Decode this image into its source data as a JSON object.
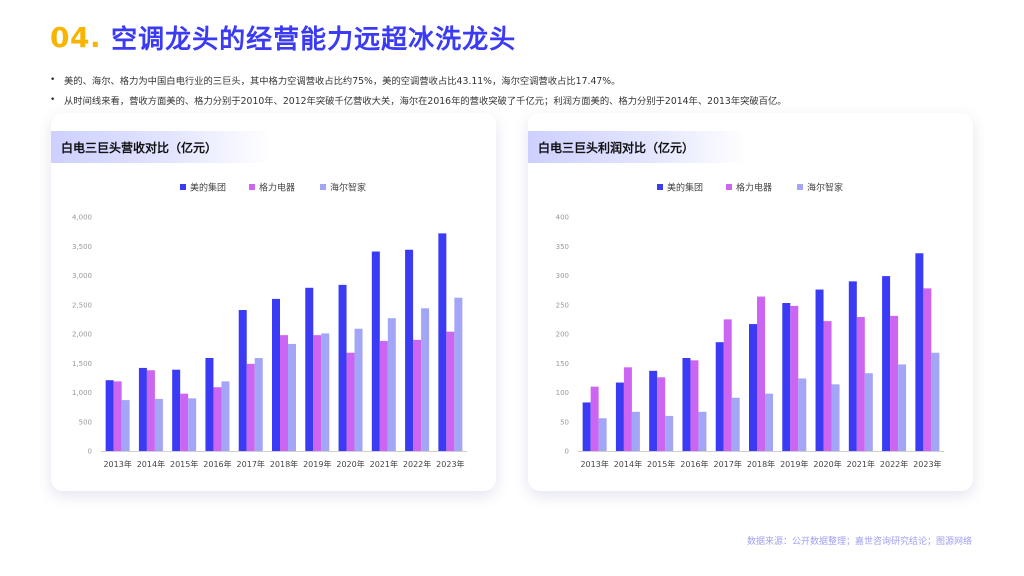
{
  "header": {
    "number": "04.",
    "title": "空调龙头的经营能力远超冰洗龙头"
  },
  "bullets": [
    "美的、海尔、格力为中国白电行业的三巨头，其中格力空调营收占比约75%，美的空调营收占比43.11%，海尔空调营收占比17.47%。",
    "从时间线来看，营收方面美的、格力分别于2010年、2012年突破千亿营收大关，海尔在2016年的营收突破了千亿元；利润方面美的、格力分别于2014年、2013年突破百亿。"
  ],
  "bullet_marker": "•",
  "cards": {
    "left_title": "白电三巨头营收对比（亿元）",
    "right_title": "白电三巨头利润对比（亿元）"
  },
  "source": "数据来源：公开数据整理；嘉世咨询研究结论；图源网络",
  "colors": {
    "midea": "#3B3BF5",
    "gree": "#CC66F2",
    "haier": "#A3A6F7",
    "title_number": "#F7B500",
    "title_text": "#3B3BF5"
  },
  "chart_data": [
    {
      "type": "bar",
      "title": "白电三巨头营收对比（亿元）",
      "categories": [
        "2013年",
        "2014年",
        "2015年",
        "2016年",
        "2017年",
        "2018年",
        "2019年",
        "2020年",
        "2021年",
        "2022年",
        "2023年"
      ],
      "series": [
        {
          "name": "美的集团",
          "values": [
            1210,
            1420,
            1390,
            1590,
            2410,
            2600,
            2790,
            2840,
            3410,
            3440,
            3720
          ]
        },
        {
          "name": "格力电器",
          "values": [
            1190,
            1380,
            980,
            1090,
            1490,
            1980,
            1980,
            1680,
            1880,
            1900,
            2040
          ]
        },
        {
          "name": "海尔智家",
          "values": [
            870,
            890,
            900,
            1190,
            1590,
            1830,
            2010,
            2090,
            2270,
            2440,
            2620
          ]
        }
      ],
      "ylim": [
        0,
        4000
      ],
      "yticks": [
        "0",
        "500",
        "1,000",
        "1,500",
        "2,000",
        "2,500",
        "3,000",
        "3,500",
        "4,000"
      ],
      "ytick_values": [
        0,
        500,
        1000,
        1500,
        2000,
        2500,
        3000,
        3500,
        4000
      ],
      "legend_position": "top",
      "grid": false
    },
    {
      "type": "bar",
      "title": "白电三巨头利润对比（亿元）",
      "categories": [
        "2013年",
        "2014年",
        "2015年",
        "2016年",
        "2017年",
        "2018年",
        "2019年",
        "2020年",
        "2021年",
        "2022年",
        "2023年"
      ],
      "series": [
        {
          "name": "美的集团",
          "values": [
            83,
            117,
            137,
            159,
            186,
            217,
            253,
            276,
            290,
            299,
            338
          ]
        },
        {
          "name": "格力电器",
          "values": [
            110,
            143,
            126,
            155,
            225,
            264,
            248,
            222,
            229,
            231,
            278
          ]
        },
        {
          "name": "海尔智家",
          "values": [
            56,
            67,
            60,
            67,
            91,
            98,
            124,
            114,
            133,
            148,
            168
          ]
        }
      ],
      "ylim": [
        0,
        400
      ],
      "yticks": [
        "0",
        "50",
        "100",
        "150",
        "200",
        "250",
        "300",
        "350",
        "400"
      ],
      "ytick_values": [
        0,
        50,
        100,
        150,
        200,
        250,
        300,
        350,
        400
      ],
      "legend_position": "top",
      "grid": false
    }
  ]
}
